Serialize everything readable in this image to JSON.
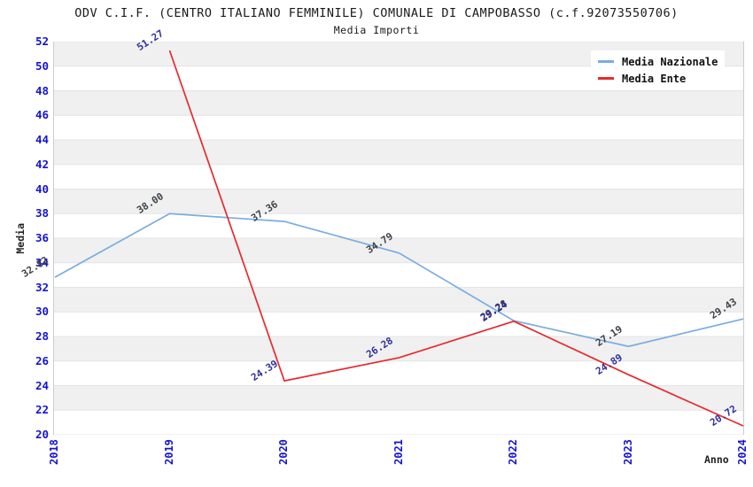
{
  "chart_data": {
    "type": "line",
    "title": "ODV C.I.F. (CENTRO ITALIANO FEMMINILE) COMUNALE DI CAMPOBASSO (c.f.92073550706)",
    "subtitle": "Media Importi",
    "xlabel": "Anno",
    "ylabel": "Media",
    "x": [
      "2018",
      "2019",
      "2020",
      "2021",
      "2022",
      "2023",
      "2024"
    ],
    "ylim": [
      20,
      52
    ],
    "ytick_step": 2,
    "grid": "horizontal-bands",
    "legend_position": "top-right",
    "colors": {
      "axis_ticks": "#1414d2",
      "band": "#f0f0f0",
      "gridline": "#e4e4e4",
      "spine": "#cccccc"
    },
    "series": [
      {
        "name": "Media Nazionale",
        "color": "#79ade0",
        "label_color": "#3f434a",
        "x": [
          "2018",
          "2019",
          "2020",
          "2021",
          "2022",
          "2023",
          "2024"
        ],
        "values": [
          32.82,
          38.0,
          37.36,
          34.79,
          29.28,
          27.19,
          29.43
        ],
        "labels": [
          "32.82",
          "38.00",
          "37.36",
          "34.79",
          "29.28",
          "27.19",
          "29.43"
        ]
      },
      {
        "name": "Media Ente",
        "color": "#e62a2e",
        "label_color": "#2f2f9e",
        "x": [
          "2019",
          "2020",
          "2021",
          "2022",
          "2023",
          "2024"
        ],
        "values": [
          51.27,
          24.39,
          26.28,
          29.24,
          24.89,
          20.72
        ],
        "labels": [
          "51.27",
          "24.39",
          "26.28",
          "29.24",
          "24.89",
          "20.72"
        ]
      }
    ]
  }
}
